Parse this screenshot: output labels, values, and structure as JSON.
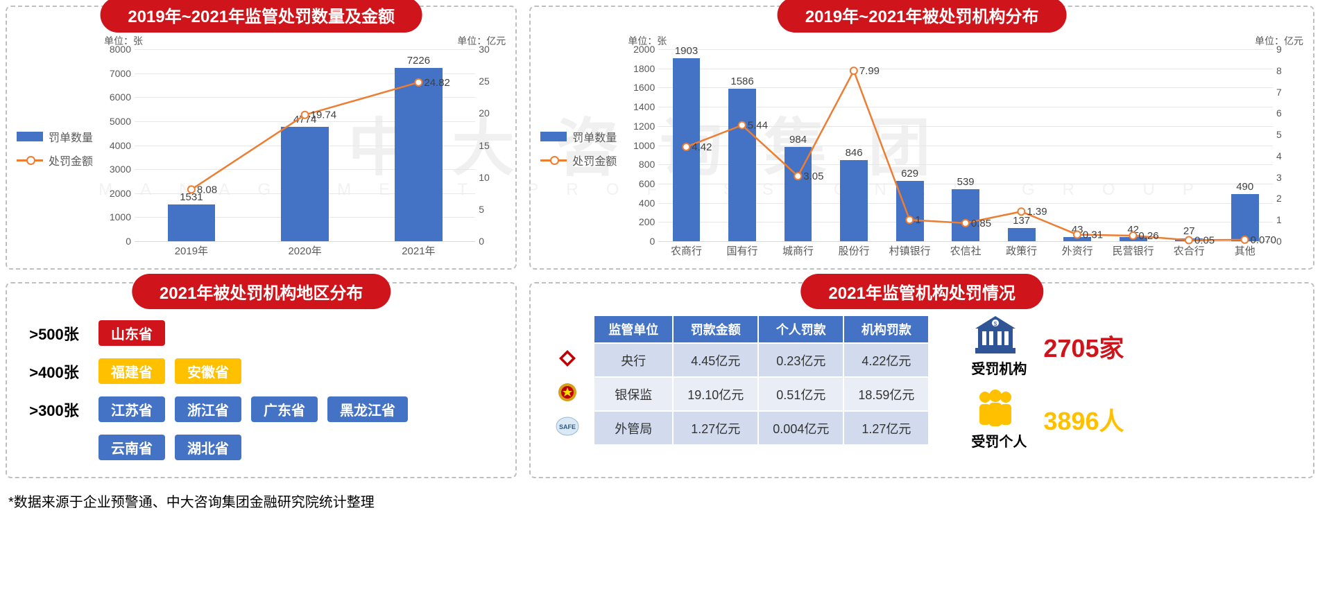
{
  "watermark_main": "中大咨询集团",
  "watermark_sub": "MANAGEMENT PROFESSIONAL GROUP",
  "colors": {
    "bar": "#4472c4",
    "line": "#ed7d31",
    "title_bg": "#cf151b",
    "grid": "#e7e7e7",
    "axis_text": "#595959"
  },
  "chart1": {
    "title": "2019年~2021年监管处罚数量及金额",
    "unit_left": "单位：张",
    "unit_right": "单位：亿元",
    "legend_bar": "罚单数量",
    "legend_line": "处罚金额",
    "categories": [
      "2019年",
      "2020年",
      "2021年"
    ],
    "bar_values": [
      1531,
      4774,
      7226
    ],
    "line_values": [
      8.08,
      19.74,
      24.82
    ],
    "y_left_max": 8000,
    "y_left_step": 1000,
    "y_right_max": 30,
    "y_right_step": 5,
    "bar_color": "#4472c4",
    "line_color": "#ed7d31",
    "bar_width_pct": 14
  },
  "chart2": {
    "title": "2019年~2021年被处罚机构分布",
    "unit_left": "单位：张",
    "unit_right": "单位：亿元",
    "legend_bar": "罚单数量",
    "legend_line": "处罚金额",
    "categories": [
      "农商行",
      "国有行",
      "城商行",
      "股份行",
      "村镇银行",
      "农信社",
      "政策行",
      "外资行",
      "民营银行",
      "农合行",
      "其他"
    ],
    "bar_values": [
      1903,
      1586,
      984,
      846,
      629,
      539,
      137,
      43,
      42,
      27,
      490
    ],
    "line_values": [
      4.42,
      5.44,
      3.05,
      7.99,
      1,
      0.85,
      1.39,
      0.31,
      0.26,
      0.05,
      0.07
    ],
    "line_labels": [
      "4.42",
      "5.44",
      "3.05",
      "7.99",
      "1",
      "0.85",
      "1.39",
      "0.31",
      "0.26",
      "0.05",
      "0.070"
    ],
    "y_left_max": 2000,
    "y_left_step": 200,
    "y_right_max": 9,
    "y_right_step": 1,
    "bar_color": "#4472c4",
    "line_color": "#ed7d31",
    "bar_width_pct": 4.5
  },
  "regions": {
    "title": "2021年被处罚机构地区分布",
    "rows": [
      {
        "label": ">500张",
        "color": "#cf151b",
        "provs": [
          "山东省"
        ]
      },
      {
        "label": ">400张",
        "color": "#ffc000",
        "provs": [
          "福建省",
          "安徽省"
        ]
      },
      {
        "label": ">300张",
        "color": "#4472c4",
        "provs": [
          "江苏省",
          "浙江省",
          "广东省",
          "黑龙江省"
        ]
      },
      {
        "label": "",
        "color": "#4472c4",
        "provs": [
          "云南省",
          "湖北省"
        ]
      }
    ]
  },
  "table_panel": {
    "title": "2021年监管机构处罚情况",
    "columns": [
      "监管单位",
      "罚款金额",
      "个人罚款",
      "机构罚款"
    ],
    "rows": [
      {
        "icon_color": "#c00000",
        "cells": [
          "央行",
          "4.45亿元",
          "0.23亿元",
          "4.22亿元"
        ]
      },
      {
        "icon_color": "#d4a017",
        "cells": [
          "银保监",
          "19.10亿元",
          "0.51亿元",
          "18.59亿元"
        ]
      },
      {
        "icon_color": "#3d7dbf",
        "cells": [
          "外管局",
          "1.27亿元",
          "0.004亿元",
          "1.27亿元"
        ]
      }
    ],
    "safe_label": "SAFE",
    "stats": [
      {
        "icon": "building",
        "label": "受罚机构",
        "value": "2705家",
        "value_color": "#cf151b",
        "icon_color": "#2f5597"
      },
      {
        "icon": "people",
        "label": "受罚个人",
        "value": "3896人",
        "value_color": "#ffc000",
        "icon_color": "#ffc000"
      }
    ]
  },
  "footnote": "*数据来源于企业预警通、中大咨询集团金融研究院统计整理"
}
